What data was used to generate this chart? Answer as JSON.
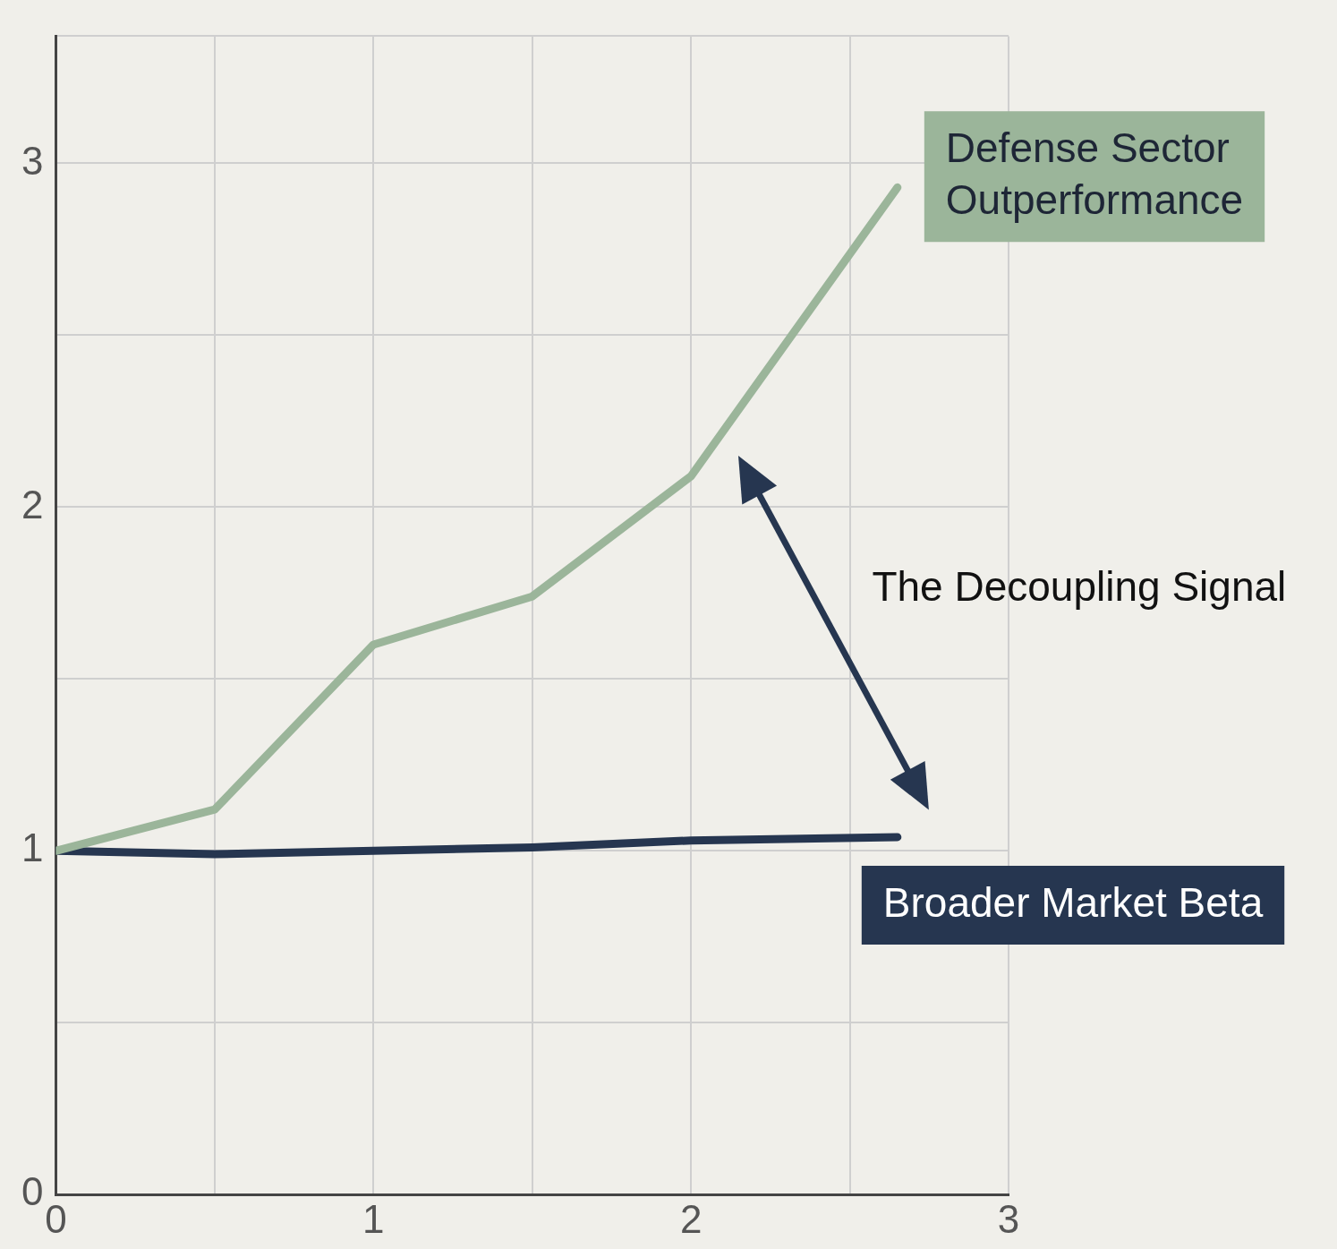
{
  "chart_data": {
    "type": "line",
    "annotations": [
      "The Decoupling Signal"
    ],
    "xlim": [
      0,
      3
    ],
    "xticks": [
      0,
      {
        "value": 0.5,
        "label": null
      },
      1,
      {
        "value": 1.5,
        "label": null
      },
      2,
      {
        "value": 2.5,
        "label": null
      },
      3
    ],
    "ylim": [
      0,
      3.37
    ],
    "yticks": [
      0,
      {
        "value": 0.5,
        "label": null
      },
      1,
      {
        "value": 1.5,
        "label": null
      },
      2,
      {
        "value": 2.5,
        "label": null
      },
      3,
      {
        "value": 3.37,
        "label": null
      }
    ],
    "grid": true,
    "legend": false,
    "marker": "none",
    "line_style": "solid",
    "series": [
      {
        "name": "Defense Sector Outperformance",
        "color": "#9bb59a",
        "x": [
          0,
          0.5,
          1,
          1.5,
          2,
          2.65
        ],
        "values": [
          1.0,
          1.12,
          1.6,
          1.74,
          2.09,
          2.93
        ]
      },
      {
        "name": "Broader Market Beta",
        "color": "#263650",
        "x": [
          0,
          0.5,
          1,
          1.5,
          2,
          2.65
        ],
        "values": [
          1.0,
          0.99,
          1.0,
          1.01,
          1.03,
          1.04
        ]
      }
    ]
  }
}
